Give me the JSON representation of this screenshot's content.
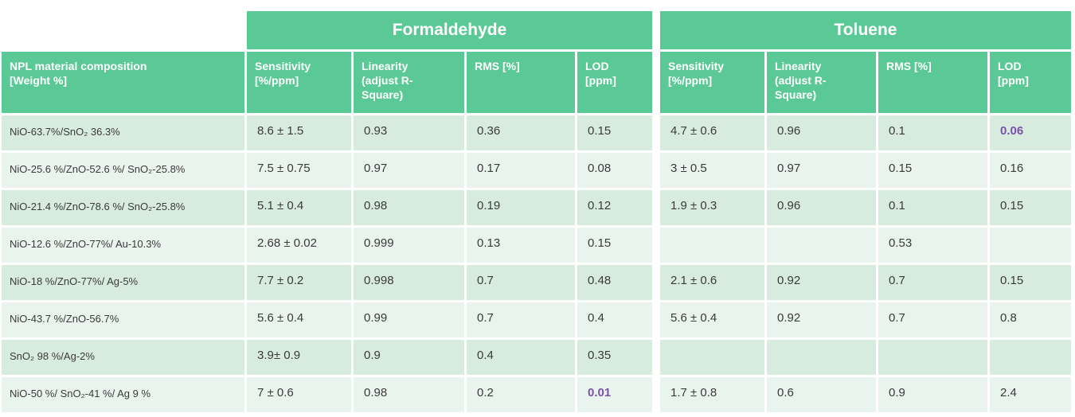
{
  "colors": {
    "header-green": "#5BC996",
    "band-dark": "#D7ECDF",
    "band-light": "#EAF4EE",
    "text-dark": "#3A3A3A",
    "highlight-purple": "#7B52A8"
  },
  "table": {
    "corner_header": "NPL material composition\n[Weight %]",
    "groups": [
      {
        "label": "Formaldehyde",
        "columns": [
          "Sensitivity\n[%/ppm]",
          "Linearity\n(adjust R-\nSquare)",
          "RMS [%]",
          "LOD\n[ppm]"
        ]
      },
      {
        "label": "Toluene",
        "columns": [
          "Sensitivity\n[%/ppm]",
          "Linearity\n(adjust R-\nSquare)",
          "RMS [%]",
          "LOD\n[ppm]"
        ]
      }
    ],
    "rows": [
      {
        "material": "NiO-63.7%/SnO₂ 36.3%",
        "formaldehyde": {
          "sensitivity": "8.6 ± 1.5",
          "linearity": "0.93",
          "rms": "0.36",
          "lod": "0.15",
          "lod_highlighted": false
        },
        "toluene": {
          "sensitivity": "4.7 ± 0.6",
          "linearity": "0.96",
          "rms": "0.1",
          "lod": "0.06",
          "lod_highlighted": true
        }
      },
      {
        "material": "NiO-25.6 %/ZnO-52.6 %/ SnO₂-25.8%",
        "formaldehyde": {
          "sensitivity": "7.5 ± 0.75",
          "linearity": "0.97",
          "rms": "0.17",
          "lod": "0.08",
          "lod_highlighted": false
        },
        "toluene": {
          "sensitivity": "3 ± 0.5",
          "linearity": "0.97",
          "rms": "0.15",
          "lod": "0.16",
          "lod_highlighted": false
        }
      },
      {
        "material": "NiO-21.4 %/ZnO-78.6 %/ SnO₂-25.8%",
        "formaldehyde": {
          "sensitivity": "5.1 ± 0.4",
          "linearity": "0.98",
          "rms": "0.19",
          "lod": "0.12",
          "lod_highlighted": false
        },
        "toluene": {
          "sensitivity": "1.9 ± 0.3",
          "linearity": "0.96",
          "rms": "0.1",
          "lod": "0.15",
          "lod_highlighted": false
        }
      },
      {
        "material": "NiO-12.6 %/ZnO-77%/ Au-10.3%",
        "formaldehyde": {
          "sensitivity": "2.68 ± 0.02",
          "linearity": "0.999",
          "rms": "0.13",
          "lod": "0.15",
          "lod_highlighted": false
        },
        "toluene": {
          "sensitivity": "",
          "linearity": "",
          "rms": "0.53",
          "lod": "",
          "lod_highlighted": false
        }
      },
      {
        "material": "NiO-18 %/ZnO-77%/ Ag-5%",
        "formaldehyde": {
          "sensitivity": "7.7 ± 0.2",
          "linearity": "0.998",
          "rms": "0.7",
          "lod": "0.48",
          "lod_highlighted": false
        },
        "toluene": {
          "sensitivity": "2.1 ± 0.6",
          "linearity": "0.92",
          "rms": "0.7",
          "lod": "0.15",
          "lod_highlighted": false
        }
      },
      {
        "material": "NiO-43.7 %/ZnO-56.7%",
        "formaldehyde": {
          "sensitivity": "5.6 ± 0.4",
          "linearity": "0.99",
          "rms": "0.7",
          "lod": "0.4",
          "lod_highlighted": false
        },
        "toluene": {
          "sensitivity": "5.6 ± 0.4",
          "linearity": "0.92",
          "rms": "0.7",
          "lod": "0.8",
          "lod_highlighted": false
        }
      },
      {
        "material": "SnO₂ 98 %/Ag-2%",
        "formaldehyde": {
          "sensitivity": "3.9± 0.9",
          "linearity": "0.9",
          "rms": "0.4",
          "lod": "0.35",
          "lod_highlighted": false
        },
        "toluene": {
          "sensitivity": "",
          "linearity": "",
          "rms": "",
          "lod": "",
          "lod_highlighted": false
        }
      },
      {
        "material": "NiO-50 %/ SnO₂-41 %/ Ag 9 %",
        "formaldehyde": {
          "sensitivity": "7 ± 0.6",
          "linearity": "0.98",
          "rms": "0.2",
          "lod": "0.01",
          "lod_highlighted": true
        },
        "toluene": {
          "sensitivity": "1.7 ± 0.8",
          "linearity": "0.6",
          "rms": "0.9",
          "lod": "2.4",
          "lod_highlighted": false
        }
      }
    ]
  }
}
